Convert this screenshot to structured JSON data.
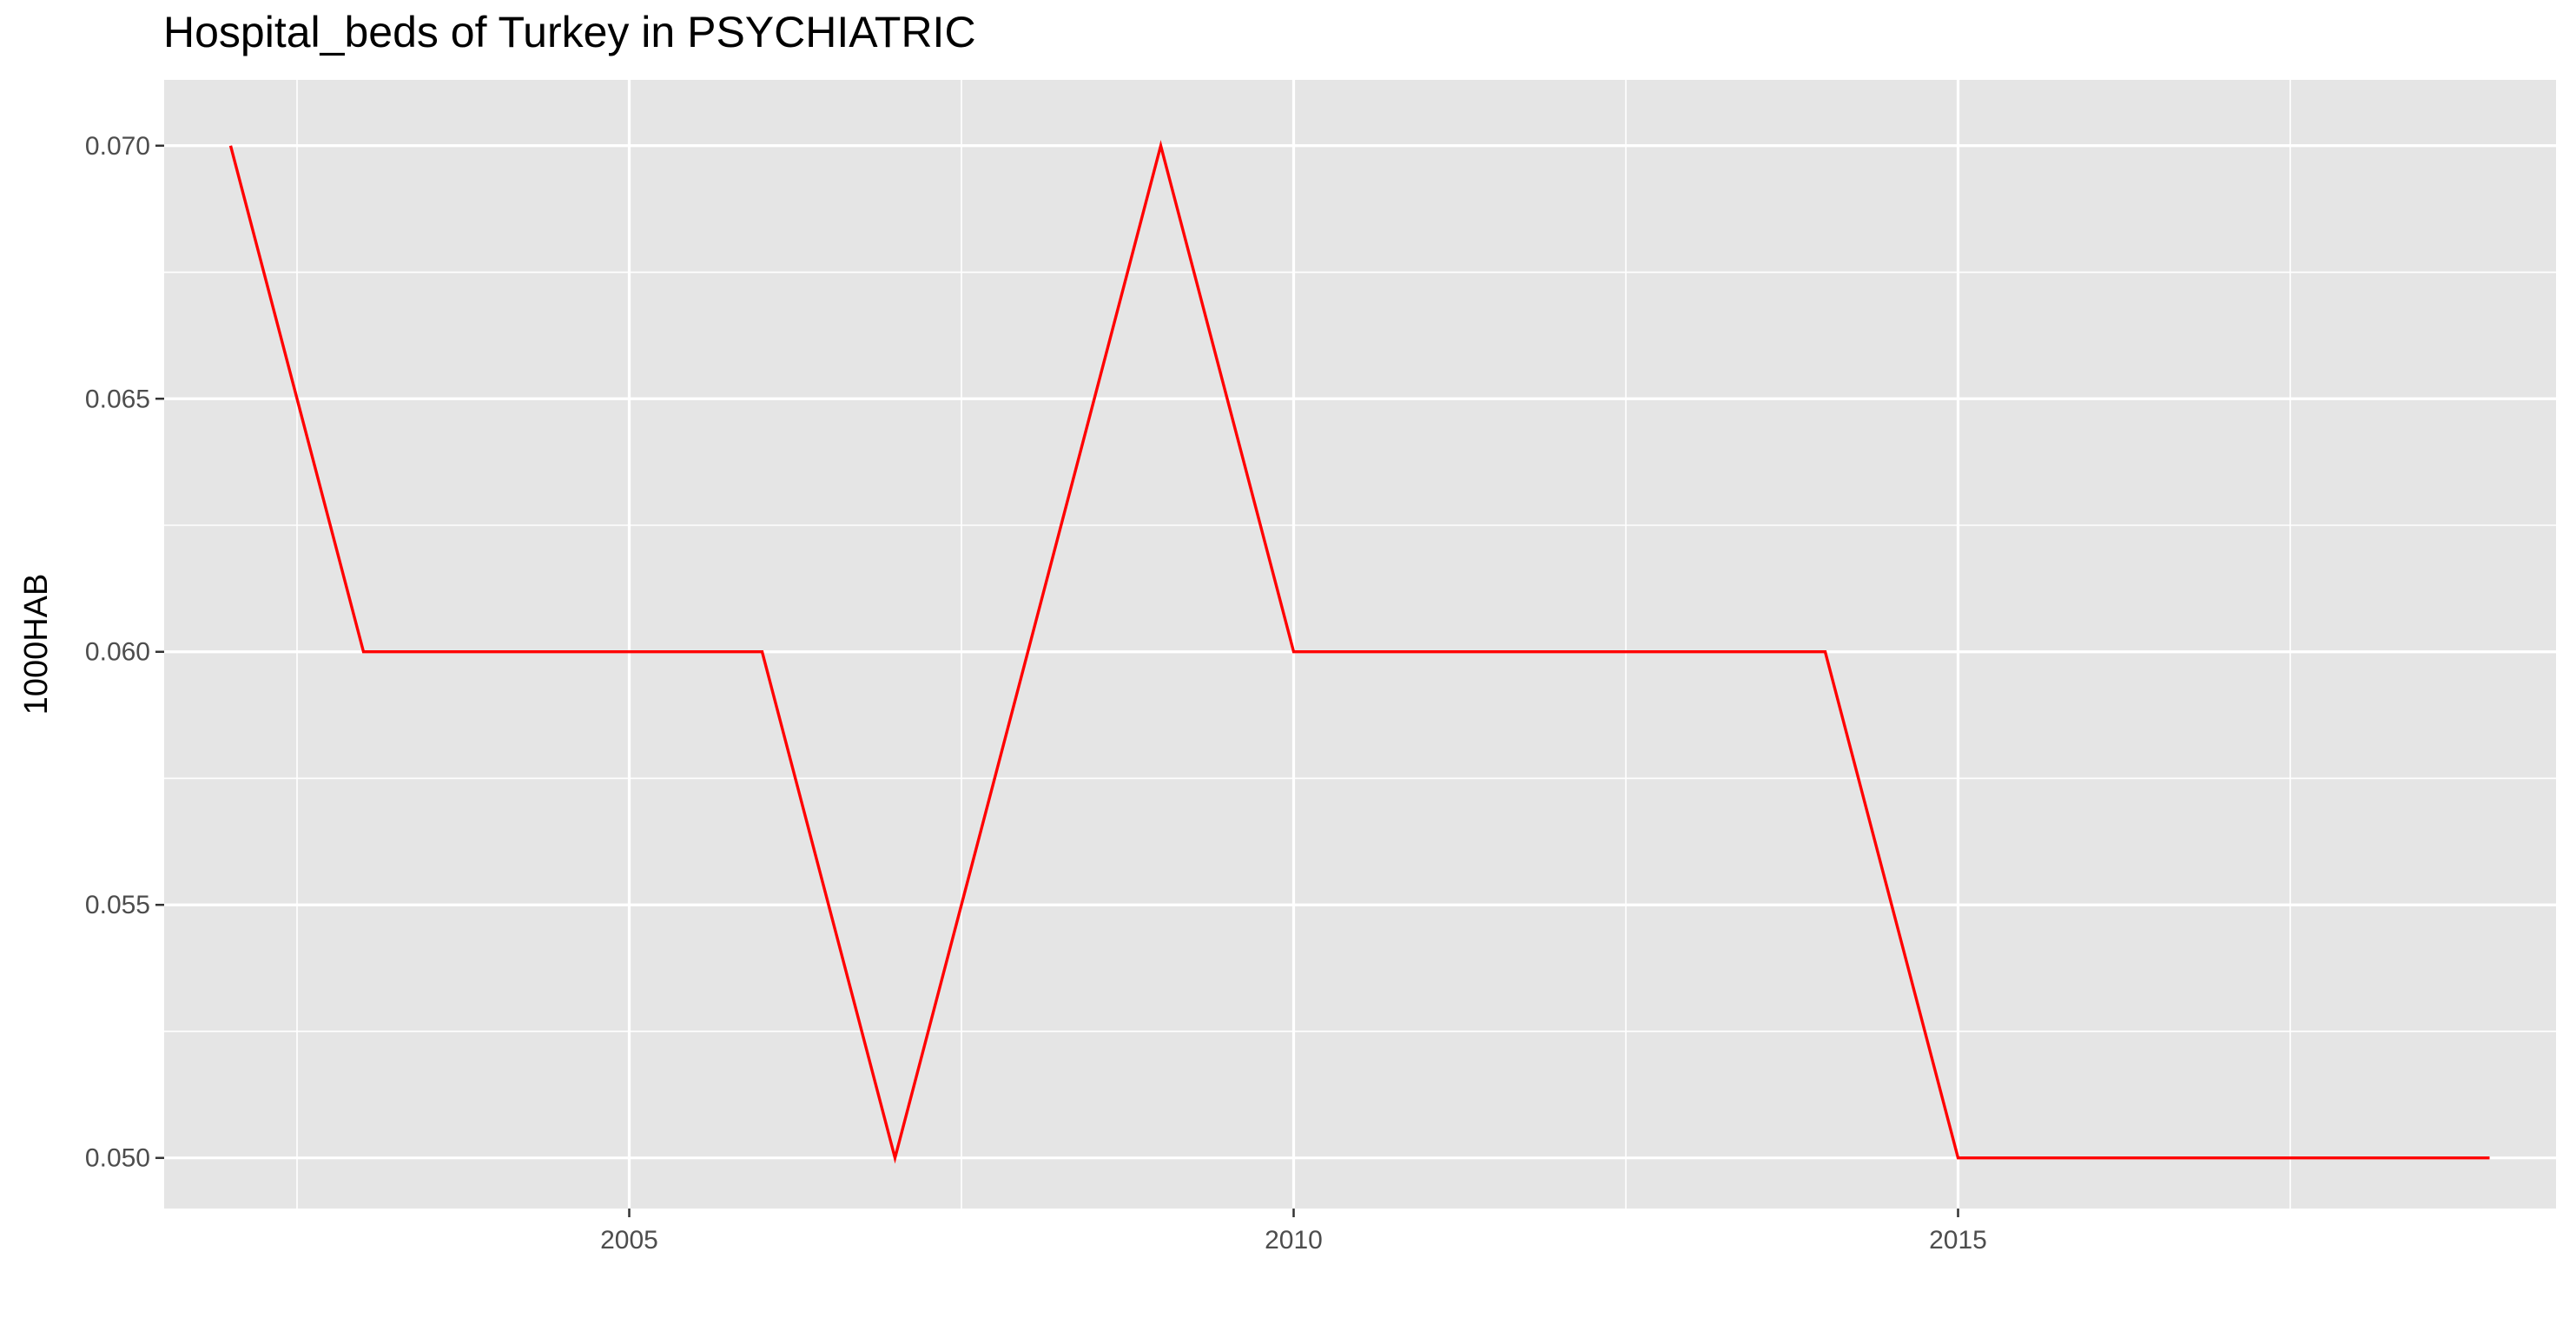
{
  "chart_data": {
    "type": "line",
    "title": "Hospital_beds of Turkey in PSYCHIATRIC",
    "xlabel": "",
    "ylabel": "1000HAB",
    "xlim": [
      2001.5,
      2019.5
    ],
    "ylim": [
      0.049,
      0.0713
    ],
    "x_ticks": [
      2005,
      2010,
      2015
    ],
    "x_tick_labels": [
      "2005",
      "2010",
      "2015"
    ],
    "y_ticks": [
      0.05,
      0.055,
      0.06,
      0.065,
      0.07
    ],
    "y_tick_labels": [
      "0.050",
      "0.055",
      "0.060",
      "0.065",
      "0.070"
    ],
    "grid": true,
    "colors": {
      "panel": "#e5e5e5",
      "grid": "#ffffff",
      "line": "#ff0000",
      "ticks": "#333333"
    },
    "series": [
      {
        "x": [
          2002,
          2003,
          2004,
          2005,
          2006,
          2007,
          2008,
          2009,
          2010,
          2011,
          2012,
          2013,
          2014,
          2015,
          2016,
          2017,
          2018,
          2019
        ],
        "values": [
          0.07,
          0.06,
          0.06,
          0.06,
          0.06,
          0.05,
          0.06,
          0.07,
          0.06,
          0.06,
          0.06,
          0.06,
          0.06,
          0.05,
          0.05,
          0.05,
          0.05,
          0.05
        ]
      }
    ]
  }
}
